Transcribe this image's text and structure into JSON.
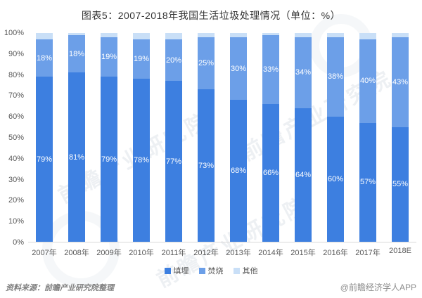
{
  "title": "图表5：2007-2018年我国生活垃圾处理情况（单位：%）",
  "footer": {
    "source": "资料来源：前瞻产业研究院整理",
    "credit": "@前瞻经济学人APP"
  },
  "watermark": {
    "text": "前瞻产业研究院"
  },
  "colors": {
    "landfill": "#3d7fe0",
    "incineration": "#6c9fe8",
    "other": "#c9dff7",
    "axis_text": "#595959",
    "axis_line": "#d9d9d9"
  },
  "chart_data": {
    "type": "bar",
    "stacked": true,
    "title": "图表5：2007-2018年我国生活垃圾处理情况（单位：%）",
    "xlabel": "",
    "ylabel": "",
    "unit": "%",
    "ylim": [
      0,
      100
    ],
    "grid": false,
    "legend_position": "bottom",
    "categories": [
      "2007年",
      "2008年",
      "2009年",
      "2010年",
      "2011年",
      "2012年",
      "2013年",
      "2014年",
      "2015年",
      "2016年",
      "2017年",
      "2018E"
    ],
    "series": [
      {
        "name": "填埋",
        "color": "#3d7fe0",
        "show_labels": true,
        "values": [
          79,
          81,
          79,
          78,
          77,
          73,
          68,
          66,
          64,
          60,
          57,
          55
        ]
      },
      {
        "name": "焚烧",
        "color": "#6c9fe8",
        "show_labels": true,
        "values": [
          18,
          18,
          19,
          19,
          20,
          25,
          30,
          33,
          34,
          38,
          40,
          43
        ]
      },
      {
        "name": "其他",
        "color": "#c9dff7",
        "show_labels": false,
        "values": [
          3,
          1,
          2,
          3,
          3,
          2,
          2,
          1,
          2,
          2,
          3,
          2
        ]
      }
    ],
    "y_ticks": [
      "0%",
      "10%",
      "20%",
      "30%",
      "40%",
      "50%",
      "60%",
      "70%",
      "80%",
      "90%",
      "100%"
    ]
  }
}
